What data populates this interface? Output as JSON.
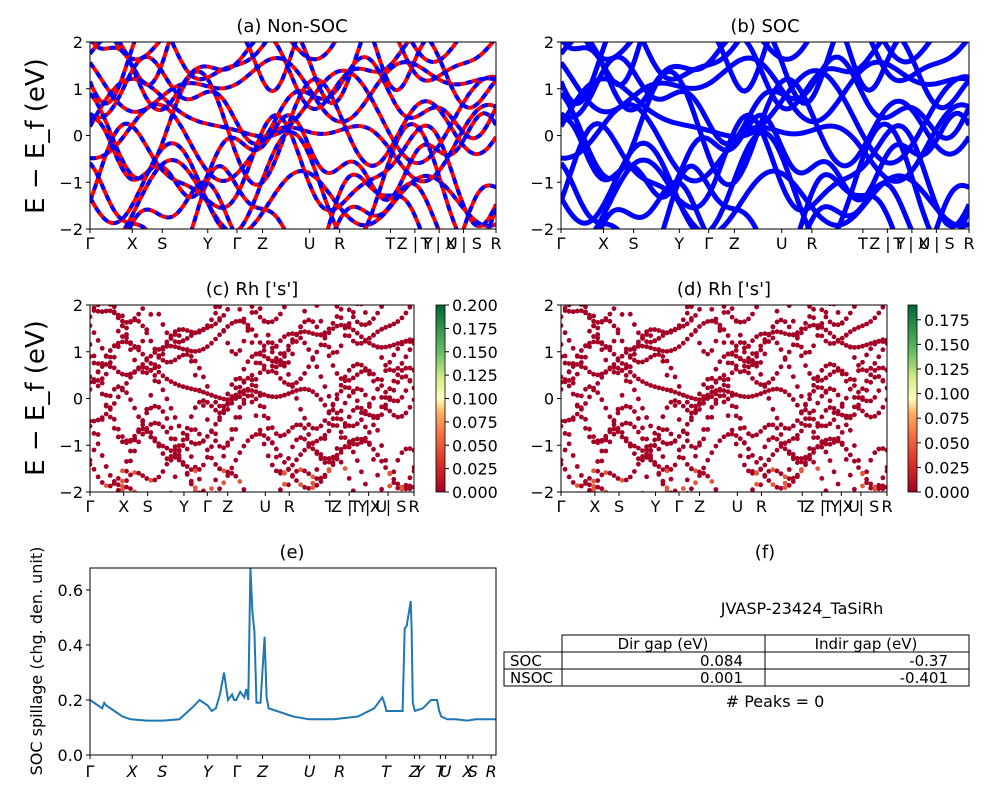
{
  "figure": {
    "title_f": "(f)",
    "material": "JVASP-23424_TaSiRh",
    "peaks_text": "# Peaks = 0"
  },
  "gap_table": {
    "headers": [
      "",
      "Dir gap (eV)",
      "Indir gap (eV)"
    ],
    "rows": [
      {
        "label": "SOC",
        "dir": "0.084",
        "indir": "-0.37"
      },
      {
        "label": "NSOC",
        "dir": "0.001",
        "indir": "-0.401"
      }
    ]
  },
  "colors": {
    "nonsoc_red": "#ff0000",
    "nonsoc_blue": "#0000ff",
    "soc_blue": "#0000ff",
    "spillage_line": "#1f77b4"
  },
  "chart_data": [
    {
      "id": "a",
      "type": "line",
      "title": "(a) Non-SOC",
      "ylabel": "E − E_f (eV)",
      "ylim": [
        -2,
        2
      ],
      "yticks": [
        "2",
        "1",
        "0",
        "−1",
        "−2"
      ],
      "kpath_labels": [
        "Γ",
        "X",
        "S",
        "Y",
        "Γ",
        "Z",
        "U",
        "R",
        "T",
        "Z | Y",
        "T | U",
        "X | S",
        "R"
      ],
      "series": [
        {
          "values": [
            [
              0,
              0.35
            ],
            [
              0.15,
              1.05
            ],
            [
              0.3,
              1.65
            ],
            [
              0.45,
              1.1
            ],
            [
              0.6,
              0.5
            ],
            [
              0.75,
              -0.2
            ],
            [
              0.9,
              0.6
            ],
            [
              1,
              1.9
            ]
          ]
        }
      ]
    },
    {
      "id": "b",
      "type": "line",
      "title": "(b) SOC",
      "ylim": [
        -2,
        2
      ],
      "yticks": [
        "2",
        "1",
        "0",
        "−1",
        "−2"
      ],
      "kpath_labels": [
        "Γ",
        "X",
        "S",
        "Y",
        "Γ",
        "Z",
        "U",
        "R",
        "T",
        "Z | Y",
        "T | U",
        "X | S",
        "R"
      ]
    },
    {
      "id": "c",
      "type": "scatter",
      "title": "(c)  Rh ['s']",
      "ylabel": "E − E_f (eV)",
      "ylim": [
        -2,
        2
      ],
      "yticks": [
        "2",
        "1",
        "0",
        "−1",
        "−2"
      ],
      "kpath_labels": [
        "Γ",
        "X",
        "S",
        "Y",
        "Γ",
        "Z",
        "U",
        "R",
        "T",
        "Z | Y",
        "T | U",
        "X | S",
        "R"
      ],
      "colorbar_ticks": [
        "0.200",
        "0.175",
        "0.150",
        "0.125",
        "0.100",
        "0.075",
        "0.050",
        "0.025",
        "0.000"
      ]
    },
    {
      "id": "d",
      "type": "scatter",
      "title": "(d) Rh ['s']",
      "ylim": [
        -2,
        2
      ],
      "yticks": [
        "2",
        "1",
        "0",
        "−1",
        "−2"
      ],
      "kpath_labels": [
        "Γ",
        "X",
        "S",
        "Y",
        "Γ",
        "Z",
        "U",
        "R",
        "T",
        "Z | Y",
        "T | U",
        "X | S",
        "R"
      ],
      "colorbar_ticks": [
        "0.175",
        "0.150",
        "0.125",
        "0.100",
        "0.075",
        "0.050",
        "0.025",
        "0.000"
      ]
    },
    {
      "id": "e",
      "type": "line",
      "title": "(e)",
      "ylabel": "SOC spillage (chg. den. unit)",
      "ylim": [
        0,
        0.68
      ],
      "yticks": [
        "0.0",
        "0.2",
        "0.4",
        "0.6"
      ],
      "yticks_values": [
        0.0,
        0.2,
        0.4,
        0.6
      ],
      "kpath_labels": [
        "Γ",
        "X",
        "S",
        "Y",
        "Γ",
        "Z",
        "U",
        "R",
        "T",
        "Z",
        "Y",
        "T",
        "U",
        "X",
        "S",
        "R"
      ],
      "kpath_positions": [
        0,
        0.104,
        0.178,
        0.29,
        0.362,
        0.425,
        0.541,
        0.615,
        0.729,
        0.799,
        0.812,
        0.863,
        0.876,
        0.931,
        0.943,
        0.988
      ],
      "x": [
        0,
        0.02,
        0.03,
        0.035,
        0.04,
        0.06,
        0.08,
        0.1,
        0.14,
        0.18,
        0.22,
        0.25,
        0.27,
        0.29,
        0.3,
        0.31,
        0.32,
        0.33,
        0.34,
        0.35,
        0.355,
        0.36,
        0.37,
        0.38,
        0.385,
        0.39,
        0.395,
        0.4,
        0.405,
        0.41,
        0.42,
        0.43,
        0.435,
        0.44,
        0.46,
        0.5,
        0.54,
        0.6,
        0.66,
        0.7,
        0.72,
        0.725,
        0.73,
        0.74,
        0.77,
        0.775,
        0.78,
        0.79,
        0.792,
        0.795,
        0.8,
        0.82,
        0.84,
        0.855,
        0.86,
        0.865,
        0.88,
        0.9,
        0.93,
        0.95,
        0.97,
        1.0
      ],
      "y": [
        0.2,
        0.18,
        0.17,
        0.19,
        0.18,
        0.16,
        0.14,
        0.13,
        0.125,
        0.125,
        0.13,
        0.17,
        0.2,
        0.18,
        0.16,
        0.17,
        0.22,
        0.3,
        0.2,
        0.22,
        0.2,
        0.2,
        0.23,
        0.21,
        0.24,
        0.2,
        0.68,
        0.52,
        0.45,
        0.19,
        0.19,
        0.43,
        0.21,
        0.17,
        0.16,
        0.14,
        0.13,
        0.13,
        0.14,
        0.17,
        0.21,
        0.19,
        0.16,
        0.16,
        0.16,
        0.46,
        0.47,
        0.56,
        0.46,
        0.19,
        0.16,
        0.17,
        0.2,
        0.2,
        0.16,
        0.14,
        0.13,
        0.13,
        0.125,
        0.13,
        0.13,
        0.13
      ]
    }
  ]
}
